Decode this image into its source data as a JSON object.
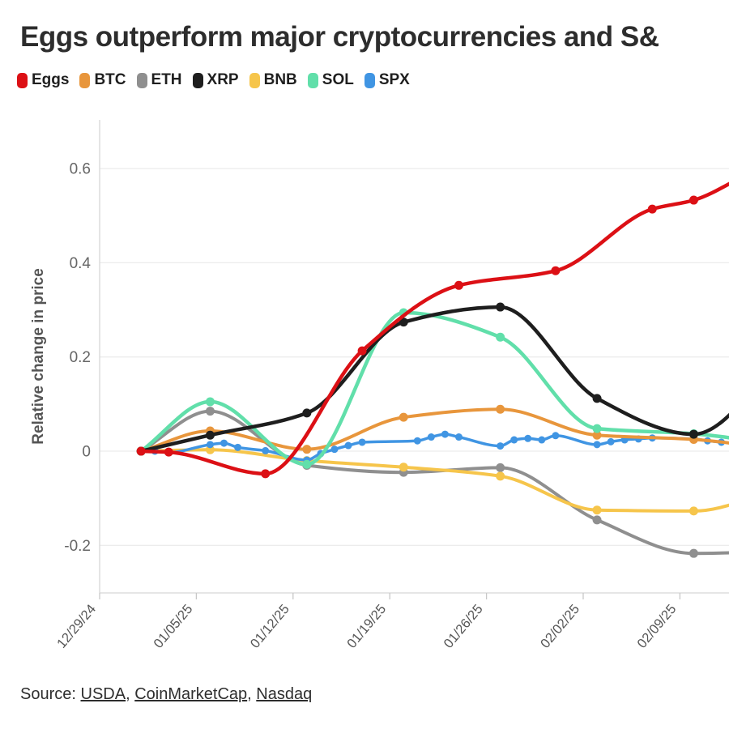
{
  "chart_data": {
    "type": "line",
    "title": "Eggs outperform major cryptocurrencies and S&",
    "ylabel": "Relative change in price",
    "x_unit": "days since 12/29/24",
    "x_domain_days": [
      0,
      45.5
    ],
    "y_domain": [
      -0.3,
      0.7
    ],
    "grid": "horizontal-only",
    "legend_position": "top-left",
    "x_ticks": [
      {
        "day": 0,
        "label": "12/29/24"
      },
      {
        "day": 7,
        "label": "01/05/25"
      },
      {
        "day": 14,
        "label": "01/12/25"
      },
      {
        "day": 21,
        "label": "01/19/25"
      },
      {
        "day": 28,
        "label": "01/26/25"
      },
      {
        "day": 35,
        "label": "02/02/25"
      },
      {
        "day": 42,
        "label": "02/09/25"
      }
    ],
    "y_ticks": [
      {
        "v": 0.6,
        "label": "0.6"
      },
      {
        "v": 0.4,
        "label": "0.4"
      },
      {
        "v": 0.2,
        "label": "0.2"
      },
      {
        "v": 0,
        "label": "0"
      },
      {
        "v": -0.2,
        "label": "-0.2"
      }
    ],
    "series": [
      {
        "name": "Eggs",
        "color": "#dc1015",
        "line_width": 4.5,
        "marker_radius": 5.5,
        "points": [
          [
            3,
            0
          ],
          [
            5,
            -0.002
          ],
          [
            12,
            -0.048
          ],
          [
            19,
            0.213
          ],
          [
            26,
            0.352
          ],
          [
            33,
            0.383
          ],
          [
            40,
            0.514
          ],
          [
            43,
            0.533
          ],
          [
            47,
            0.59
          ]
        ]
      },
      {
        "name": "BTC",
        "color": "#e8963c",
        "line_width": 4,
        "marker_radius": 5.5,
        "points": [
          [
            3,
            0
          ],
          [
            8,
            0.043
          ],
          [
            15,
            0.004
          ],
          [
            22,
            0.072
          ],
          [
            29,
            0.089
          ],
          [
            36,
            0.034
          ],
          [
            43,
            0.025
          ],
          [
            50,
            0
          ]
        ]
      },
      {
        "name": "ETH",
        "color": "#8f8f8f",
        "line_width": 4,
        "marker_radius": 5.5,
        "points": [
          [
            3,
            0
          ],
          [
            8,
            0.085
          ],
          [
            15,
            -0.03
          ],
          [
            22,
            -0.045
          ],
          [
            29,
            -0.035
          ],
          [
            36,
            -0.146
          ],
          [
            43,
            -0.217
          ],
          [
            50,
            -0.212
          ]
        ]
      },
      {
        "name": "XRP",
        "color": "#1e1e1e",
        "line_width": 4.5,
        "marker_radius": 5.5,
        "points": [
          [
            3,
            0
          ],
          [
            8,
            0.034
          ],
          [
            15,
            0.081
          ],
          [
            22,
            0.274
          ],
          [
            29,
            0.306
          ],
          [
            36,
            0.112
          ],
          [
            43,
            0.036
          ],
          [
            50,
            0.22
          ]
        ]
      },
      {
        "name": "BNB",
        "color": "#f6c54b",
        "line_width": 4,
        "marker_radius": 5.5,
        "points": [
          [
            3,
            0
          ],
          [
            8,
            0.003
          ],
          [
            15,
            -0.02
          ],
          [
            22,
            -0.034
          ],
          [
            29,
            -0.053
          ],
          [
            36,
            -0.125
          ],
          [
            43,
            -0.127
          ],
          [
            50,
            -0.07
          ]
        ]
      },
      {
        "name": "SOL",
        "color": "#61dfaa",
        "line_width": 4.5,
        "marker_radius": 5.5,
        "points": [
          [
            3,
            0
          ],
          [
            8,
            0.105
          ],
          [
            15,
            -0.028
          ],
          [
            22,
            0.294
          ],
          [
            29,
            0.242
          ],
          [
            36,
            0.048
          ],
          [
            43,
            0.037
          ],
          [
            50,
            0.01
          ]
        ]
      },
      {
        "name": "SPX",
        "color": "#4095e3",
        "line_width": 3.5,
        "marker_radius": 4.5,
        "points": [
          [
            3,
            0
          ],
          [
            4,
            0
          ],
          [
            5,
            -0.003
          ],
          [
            8,
            0.014
          ],
          [
            9,
            0.017
          ],
          [
            10,
            0.008
          ],
          [
            12,
            0.001
          ],
          [
            15,
            -0.019
          ],
          [
            16,
            -0.005
          ],
          [
            17,
            0.004
          ],
          [
            18,
            0.012
          ],
          [
            19,
            0.019
          ],
          [
            23,
            0.022
          ],
          [
            24,
            0.03
          ],
          [
            25,
            0.036
          ],
          [
            26,
            0.03
          ],
          [
            29,
            0.011
          ],
          [
            30,
            0.024
          ],
          [
            31,
            0.027
          ],
          [
            32,
            0.024
          ],
          [
            33,
            0.033
          ],
          [
            36,
            0.014
          ],
          [
            37,
            0.02
          ],
          [
            38,
            0.024
          ],
          [
            39,
            0.026
          ],
          [
            40,
            0.028
          ],
          [
            43,
            0.026
          ],
          [
            44,
            0.022
          ],
          [
            45,
            0.019
          ]
        ]
      }
    ],
    "draw_order": [
      "ETH",
      "BNB",
      "SPX",
      "BTC",
      "SOL",
      "XRP",
      "Eggs"
    ]
  },
  "source": {
    "prefix": "Source:",
    "links": [
      "USDA",
      "CoinMarketCap",
      "Nasdaq"
    ],
    "separator": ", "
  }
}
